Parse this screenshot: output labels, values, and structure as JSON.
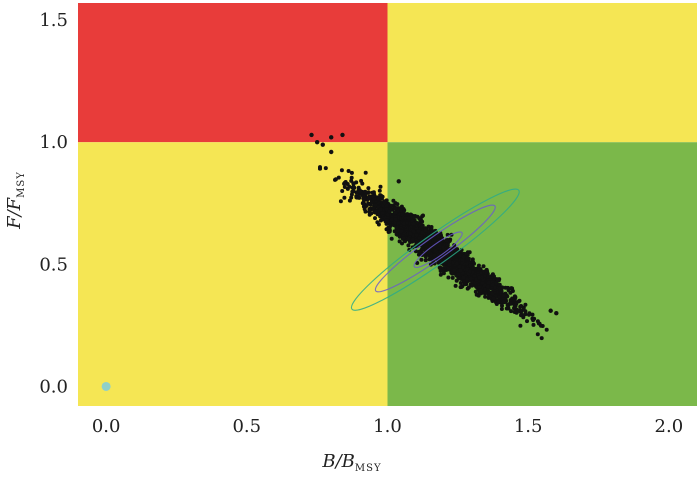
{
  "chart_data": {
    "type": "scatter",
    "title": "",
    "xlabel": {
      "main": "B/B",
      "sub": "MSY"
    },
    "ylabel": {
      "main": "F/F",
      "sub": "MSY"
    },
    "xlim": [
      -0.1,
      2.1
    ],
    "ylim": [
      -0.08,
      1.57
    ],
    "x_ticks": [
      0.0,
      0.5,
      1.0,
      1.5,
      2.0
    ],
    "x_tick_labels": [
      "0.0",
      "0.5",
      "1.0",
      "1.5",
      "2.0"
    ],
    "y_ticks": [
      0.0,
      0.5,
      1.0,
      1.5
    ],
    "y_tick_labels": [
      "0.0",
      "0.5",
      "1.0",
      "1.5"
    ],
    "grid": false,
    "quadrants": [
      {
        "name": "overfished-overfishing",
        "x": [
          -0.1,
          1.0
        ],
        "y": [
          1.0,
          1.57
        ],
        "color": "#e83c3a"
      },
      {
        "name": "healthy-overfishing",
        "x": [
          1.0,
          2.1
        ],
        "y": [
          1.0,
          1.57
        ],
        "color": "#f5e654"
      },
      {
        "name": "overfished-no-overfishing",
        "x": [
          -0.1,
          1.0
        ],
        "y": [
          -0.08,
          1.0
        ],
        "color": "#f5e654"
      },
      {
        "name": "healthy-no-overfishing",
        "x": [
          1.0,
          2.1
        ],
        "y": [
          -0.08,
          1.0
        ],
        "color": "#7bb84a"
      }
    ],
    "cloud": {
      "description": "dense band of posterior draws",
      "center": [
        1.18,
        0.56
      ],
      "trend_slope": -0.82,
      "x_range": [
        0.73,
        1.6
      ],
      "color": "#111111"
    },
    "outliers": [
      {
        "x": 0.73,
        "y": 1.03
      },
      {
        "x": 0.75,
        "y": 1.0
      },
      {
        "x": 0.77,
        "y": 0.99
      },
      {
        "x": 0.8,
        "y": 1.02
      },
      {
        "x": 0.84,
        "y": 1.03
      },
      {
        "x": 0.8,
        "y": 0.96
      },
      {
        "x": 1.04,
        "y": 0.84
      },
      {
        "x": 1.58,
        "y": 0.31
      },
      {
        "x": 1.6,
        "y": 0.3
      }
    ],
    "contours": [
      {
        "level": "inner",
        "center": [
          1.18,
          0.56
        ],
        "rx": 0.08,
        "ry": 0.025,
        "color": "#6a5acd"
      },
      {
        "level": "mid",
        "center": [
          1.17,
          0.565
        ],
        "rx": 0.2,
        "ry": 0.045,
        "color": "#6a5acd"
      },
      {
        "level": "outer",
        "center": [
          1.17,
          0.56
        ],
        "rx": 0.28,
        "ry": 0.06,
        "color": "#2aaa8a"
      }
    ],
    "origin_point": {
      "x": 0.0,
      "y": 0.0,
      "color": "#8fd0c8"
    },
    "colors": {
      "red": "#e83c3a",
      "yellow": "#f5e654",
      "green": "#7bb84a",
      "points": "#111111"
    }
  }
}
